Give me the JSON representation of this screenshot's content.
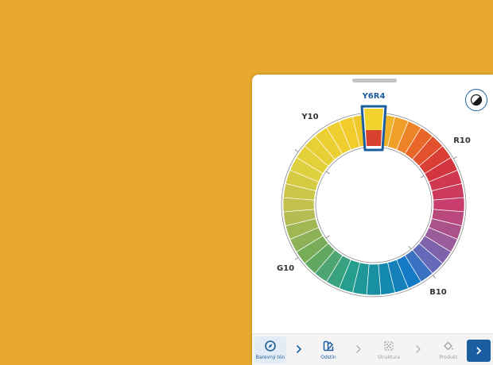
{
  "wheel": {
    "selected_label": "Y6R4",
    "hue_labels": {
      "y10": "Y10",
      "r10": "R10",
      "b10": "B10",
      "g10": "G10"
    }
  },
  "steps": [
    {
      "label": "Barevný tón",
      "icon": "compass-icon",
      "state": "active"
    },
    {
      "label": "Odstín",
      "icon": "color-swatch-icon",
      "state": "done"
    },
    {
      "label": "Struktura",
      "icon": "texture-icon",
      "state": "disabled"
    },
    {
      "label": "Produkt",
      "icon": "paint-bucket-icon",
      "state": "disabled"
    }
  ],
  "colors": {
    "accent": "#1a5e9f",
    "background": "#e6a92e"
  }
}
